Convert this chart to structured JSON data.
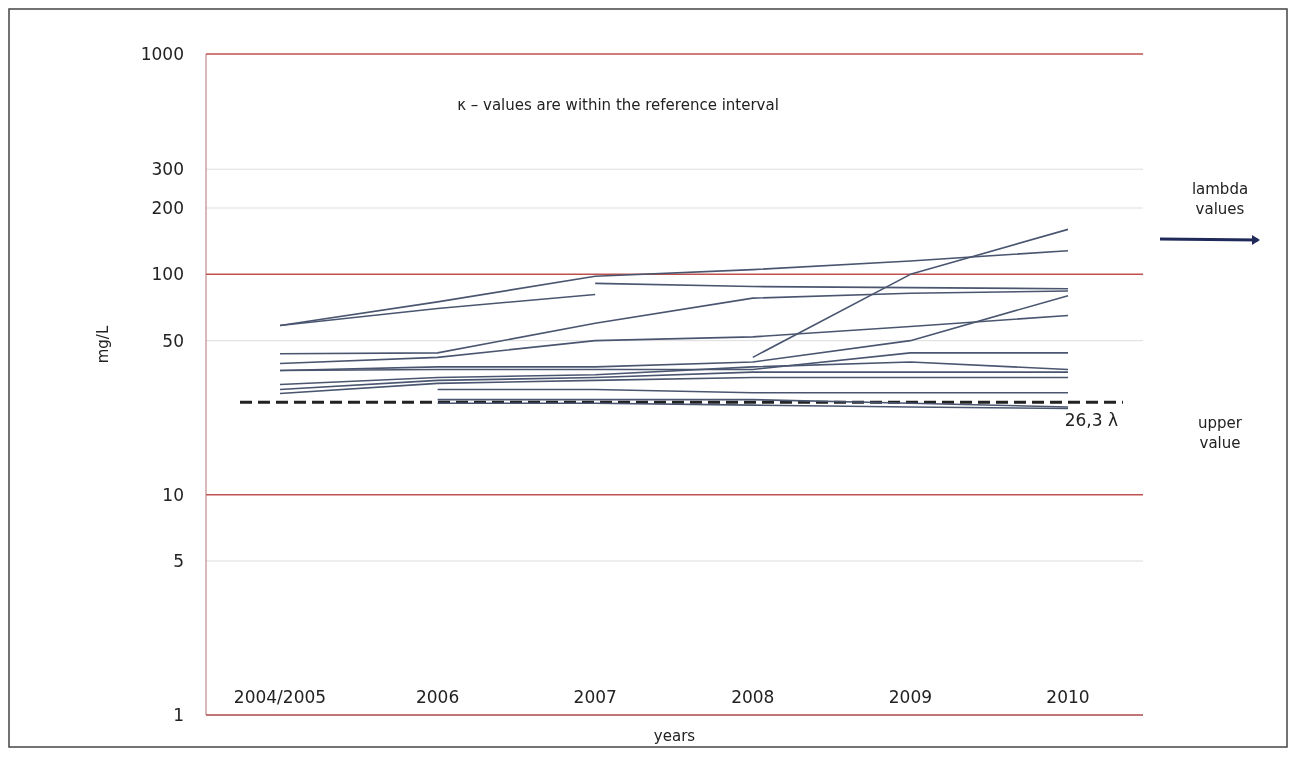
{
  "chart_data": {
    "type": "line",
    "xlabel": "years",
    "ylabel": "mg/L",
    "log": "y",
    "categories": [
      "2004/2005",
      "2006",
      "2007",
      "2008",
      "2009",
      "2010"
    ],
    "ylim": [
      1,
      1000
    ],
    "yticks": [
      1,
      5,
      10,
      50,
      100,
      200,
      300,
      1000
    ],
    "grid": "y",
    "series": [
      {
        "color": "#4a5670",
        "values": [
          58.6,
          75,
          98,
          105,
          115,
          128
        ]
      },
      {
        "color": "#4a5670",
        "values": [
          58.6,
          70,
          81,
          null,
          null,
          null
        ]
      },
      {
        "color": "#4a5670",
        "values": [
          null,
          null,
          91,
          88,
          87,
          86
        ]
      },
      {
        "color": "#4a5670",
        "values": [
          43.6,
          44,
          60,
          78,
          82,
          84
        ]
      },
      {
        "color": "#4a5670",
        "values": [
          null,
          null,
          null,
          42,
          100,
          160
        ]
      },
      {
        "color": "#4a5670",
        "values": [
          39.4,
          42,
          50,
          52,
          58,
          65
        ]
      },
      {
        "color": "#4a5670",
        "values": [
          36.6,
          38,
          38,
          40,
          50,
          80
        ]
      },
      {
        "color": "#4a5670",
        "values": [
          36.6,
          37,
          37,
          37,
          44,
          44
        ]
      },
      {
        "color": "#4a5670",
        "values": [
          31.6,
          34,
          35,
          38,
          40,
          37
        ]
      },
      {
        "color": "#4a5670",
        "values": [
          30,
          33,
          34,
          36,
          36,
          36
        ]
      },
      {
        "color": "#4a5670",
        "values": [
          28.8,
          32,
          33,
          34,
          34,
          34
        ]
      },
      {
        "color": "#4a5670",
        "values": [
          null,
          30,
          30,
          29,
          29,
          29
        ]
      },
      {
        "color": "#4a5670",
        "values": [
          null,
          27,
          27,
          27,
          26,
          25
        ]
      },
      {
        "color": "#4a5670",
        "values": [
          null,
          26,
          26,
          25.5,
          25,
          24.6
        ]
      }
    ],
    "ref_lines": [
      {
        "axis": "y",
        "value": 26.3,
        "label": "26,3 λ",
        "color": "#222222",
        "line_style": "dashed"
      }
    ],
    "annotations": [
      "κ – values are within the reference interval",
      "lambda values",
      "upper value"
    ]
  }
}
